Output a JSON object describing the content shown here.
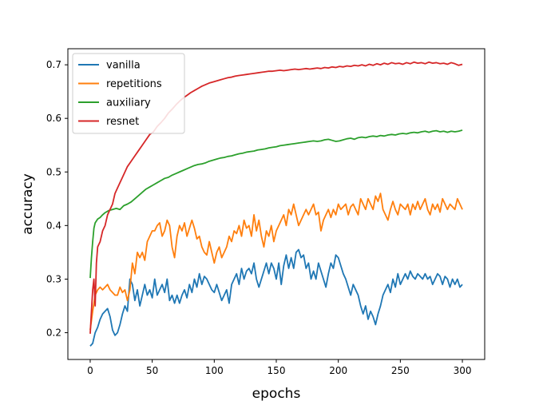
{
  "chart_data": {
    "type": "line",
    "xlabel": "epochs",
    "ylabel": "accuracy",
    "xlim": [
      -18,
      318
    ],
    "ylim": [
      0.15,
      0.73
    ],
    "xticks": [
      0,
      50,
      100,
      150,
      200,
      250,
      300
    ],
    "yticks": [
      0.2,
      0.3,
      0.4,
      0.5,
      0.6,
      0.7
    ],
    "legend_position": "top-left",
    "grid": false,
    "series": [
      {
        "name": "vanilla",
        "color": "#1f77b4",
        "x": [
          0,
          2,
          4,
          6,
          8,
          10,
          12,
          14,
          16,
          18,
          20,
          22,
          24,
          26,
          28,
          30,
          32,
          34,
          36,
          38,
          40,
          42,
          44,
          46,
          48,
          50,
          52,
          54,
          56,
          58,
          60,
          62,
          64,
          66,
          68,
          70,
          72,
          74,
          76,
          78,
          80,
          82,
          84,
          86,
          88,
          90,
          92,
          94,
          96,
          98,
          100,
          102,
          104,
          106,
          108,
          110,
          112,
          114,
          116,
          118,
          120,
          122,
          124,
          126,
          128,
          130,
          132,
          134,
          136,
          138,
          140,
          142,
          144,
          146,
          148,
          150,
          152,
          154,
          156,
          158,
          160,
          162,
          164,
          166,
          168,
          170,
          172,
          174,
          176,
          178,
          180,
          182,
          184,
          186,
          188,
          190,
          192,
          194,
          196,
          198,
          200,
          202,
          204,
          206,
          208,
          210,
          212,
          214,
          216,
          218,
          220,
          222,
          224,
          226,
          228,
          230,
          232,
          234,
          236,
          238,
          240,
          242,
          244,
          246,
          248,
          250,
          252,
          254,
          256,
          258,
          260,
          262,
          264,
          266,
          268,
          270,
          272,
          274,
          276,
          278,
          280,
          282,
          284,
          286,
          288,
          290,
          292,
          294,
          296,
          298,
          300
        ],
        "values": [
          0.175,
          0.18,
          0.2,
          0.21,
          0.225,
          0.235,
          0.24,
          0.245,
          0.23,
          0.205,
          0.195,
          0.2,
          0.215,
          0.235,
          0.25,
          0.24,
          0.3,
          0.29,
          0.26,
          0.28,
          0.25,
          0.27,
          0.29,
          0.27,
          0.28,
          0.265,
          0.3,
          0.27,
          0.28,
          0.29,
          0.275,
          0.3,
          0.26,
          0.27,
          0.255,
          0.27,
          0.255,
          0.27,
          0.28,
          0.265,
          0.29,
          0.275,
          0.3,
          0.285,
          0.31,
          0.29,
          0.305,
          0.3,
          0.29,
          0.28,
          0.275,
          0.29,
          0.275,
          0.26,
          0.27,
          0.28,
          0.255,
          0.29,
          0.3,
          0.31,
          0.29,
          0.32,
          0.3,
          0.315,
          0.32,
          0.31,
          0.33,
          0.3,
          0.285,
          0.3,
          0.315,
          0.33,
          0.31,
          0.33,
          0.32,
          0.3,
          0.33,
          0.29,
          0.325,
          0.345,
          0.32,
          0.34,
          0.32,
          0.35,
          0.355,
          0.34,
          0.345,
          0.32,
          0.33,
          0.3,
          0.315,
          0.3,
          0.33,
          0.315,
          0.3,
          0.285,
          0.31,
          0.33,
          0.32,
          0.345,
          0.34,
          0.325,
          0.31,
          0.3,
          0.285,
          0.27,
          0.29,
          0.28,
          0.27,
          0.25,
          0.235,
          0.25,
          0.225,
          0.24,
          0.23,
          0.215,
          0.235,
          0.25,
          0.27,
          0.28,
          0.29,
          0.275,
          0.3,
          0.285,
          0.31,
          0.29,
          0.3,
          0.31,
          0.3,
          0.315,
          0.305,
          0.3,
          0.31,
          0.305,
          0.3,
          0.31,
          0.3,
          0.305,
          0.29,
          0.3,
          0.31,
          0.305,
          0.29,
          0.305,
          0.3,
          0.285,
          0.3,
          0.29,
          0.3,
          0.285,
          0.29
        ]
      },
      {
        "name": "repetitions",
        "color": "#ff7f0e",
        "x": [
          0,
          2,
          4,
          6,
          8,
          10,
          12,
          14,
          16,
          18,
          20,
          22,
          24,
          26,
          28,
          30,
          32,
          34,
          36,
          38,
          40,
          42,
          44,
          46,
          48,
          50,
          52,
          54,
          56,
          58,
          60,
          62,
          64,
          66,
          68,
          70,
          72,
          74,
          76,
          78,
          80,
          82,
          84,
          86,
          88,
          90,
          92,
          94,
          96,
          98,
          100,
          102,
          104,
          106,
          108,
          110,
          112,
          114,
          116,
          118,
          120,
          122,
          124,
          126,
          128,
          130,
          132,
          134,
          136,
          138,
          140,
          142,
          144,
          146,
          148,
          150,
          152,
          154,
          156,
          158,
          160,
          162,
          164,
          166,
          168,
          170,
          172,
          174,
          176,
          178,
          180,
          182,
          184,
          186,
          188,
          190,
          192,
          194,
          196,
          198,
          200,
          202,
          204,
          206,
          208,
          210,
          212,
          214,
          216,
          218,
          220,
          222,
          224,
          226,
          228,
          230,
          232,
          234,
          236,
          238,
          240,
          242,
          244,
          246,
          248,
          250,
          252,
          254,
          256,
          258,
          260,
          262,
          264,
          266,
          268,
          270,
          272,
          274,
          276,
          278,
          280,
          282,
          284,
          286,
          288,
          290,
          292,
          294,
          296,
          298,
          300
        ],
        "values": [
          0.205,
          0.24,
          0.27,
          0.28,
          0.285,
          0.28,
          0.285,
          0.29,
          0.28,
          0.275,
          0.27,
          0.27,
          0.285,
          0.275,
          0.28,
          0.26,
          0.28,
          0.33,
          0.31,
          0.35,
          0.34,
          0.35,
          0.335,
          0.37,
          0.38,
          0.39,
          0.39,
          0.4,
          0.405,
          0.38,
          0.39,
          0.41,
          0.4,
          0.36,
          0.34,
          0.38,
          0.4,
          0.39,
          0.405,
          0.38,
          0.395,
          0.41,
          0.395,
          0.375,
          0.38,
          0.36,
          0.35,
          0.345,
          0.37,
          0.35,
          0.33,
          0.35,
          0.36,
          0.34,
          0.35,
          0.36,
          0.38,
          0.37,
          0.39,
          0.385,
          0.4,
          0.38,
          0.41,
          0.395,
          0.4,
          0.38,
          0.42,
          0.39,
          0.41,
          0.38,
          0.36,
          0.39,
          0.38,
          0.4,
          0.37,
          0.39,
          0.4,
          0.41,
          0.42,
          0.4,
          0.43,
          0.42,
          0.44,
          0.42,
          0.4,
          0.41,
          0.42,
          0.43,
          0.42,
          0.43,
          0.44,
          0.42,
          0.425,
          0.39,
          0.41,
          0.42,
          0.43,
          0.415,
          0.43,
          0.42,
          0.44,
          0.43,
          0.435,
          0.44,
          0.42,
          0.435,
          0.44,
          0.43,
          0.42,
          0.45,
          0.44,
          0.43,
          0.45,
          0.44,
          0.43,
          0.455,
          0.445,
          0.46,
          0.43,
          0.42,
          0.41,
          0.43,
          0.445,
          0.43,
          0.42,
          0.44,
          0.435,
          0.43,
          0.44,
          0.42,
          0.44,
          0.43,
          0.445,
          0.43,
          0.44,
          0.45,
          0.43,
          0.42,
          0.44,
          0.43,
          0.44,
          0.425,
          0.45,
          0.44,
          0.43,
          0.44,
          0.435,
          0.43,
          0.45,
          0.44,
          0.43
        ]
      },
      {
        "name": "auxiliary",
        "color": "#2ca02c",
        "x": [
          0,
          1,
          2,
          3,
          4,
          6,
          8,
          10,
          12,
          15,
          18,
          21,
          24,
          27,
          30,
          33,
          36,
          39,
          42,
          45,
          48,
          51,
          54,
          57,
          60,
          63,
          66,
          69,
          72,
          75,
          78,
          81,
          84,
          87,
          90,
          93,
          96,
          99,
          102,
          105,
          108,
          111,
          114,
          117,
          120,
          123,
          126,
          129,
          132,
          135,
          138,
          141,
          144,
          147,
          150,
          153,
          156,
          159,
          162,
          165,
          168,
          171,
          174,
          177,
          180,
          183,
          186,
          189,
          192,
          195,
          198,
          201,
          204,
          207,
          210,
          213,
          216,
          219,
          222,
          225,
          228,
          231,
          234,
          237,
          240,
          243,
          246,
          249,
          252,
          255,
          258,
          261,
          264,
          267,
          270,
          273,
          276,
          279,
          282,
          285,
          288,
          291,
          294,
          297,
          300
        ],
        "values": [
          0.302,
          0.34,
          0.37,
          0.395,
          0.405,
          0.412,
          0.415,
          0.42,
          0.424,
          0.428,
          0.43,
          0.432,
          0.43,
          0.437,
          0.44,
          0.444,
          0.45,
          0.456,
          0.462,
          0.468,
          0.472,
          0.476,
          0.48,
          0.484,
          0.488,
          0.49,
          0.494,
          0.497,
          0.5,
          0.503,
          0.506,
          0.509,
          0.512,
          0.514,
          0.515,
          0.517,
          0.52,
          0.522,
          0.524,
          0.526,
          0.527,
          0.529,
          0.53,
          0.532,
          0.534,
          0.535,
          0.537,
          0.538,
          0.539,
          0.541,
          0.542,
          0.543,
          0.545,
          0.546,
          0.547,
          0.549,
          0.55,
          0.551,
          0.552,
          0.553,
          0.554,
          0.555,
          0.556,
          0.557,
          0.558,
          0.557,
          0.558,
          0.56,
          0.561,
          0.559,
          0.557,
          0.558,
          0.56,
          0.562,
          0.563,
          0.561,
          0.564,
          0.565,
          0.564,
          0.566,
          0.567,
          0.566,
          0.568,
          0.567,
          0.569,
          0.57,
          0.569,
          0.571,
          0.572,
          0.571,
          0.573,
          0.574,
          0.573,
          0.575,
          0.576,
          0.574,
          0.576,
          0.577,
          0.575,
          0.576,
          0.574,
          0.576,
          0.575,
          0.576,
          0.578
        ]
      },
      {
        "name": "resnet",
        "color": "#d62728",
        "x": [
          0,
          1,
          2,
          3,
          4,
          5,
          6,
          8,
          10,
          12,
          14,
          16,
          18,
          20,
          22,
          24,
          26,
          28,
          30,
          33,
          36,
          39,
          42,
          45,
          48,
          51,
          54,
          57,
          60,
          63,
          66,
          69,
          72,
          75,
          78,
          81,
          84,
          87,
          90,
          93,
          96,
          99,
          102,
          105,
          108,
          111,
          114,
          117,
          120,
          123,
          126,
          129,
          132,
          135,
          138,
          141,
          144,
          147,
          150,
          153,
          156,
          159,
          162,
          165,
          168,
          171,
          174,
          177,
          180,
          183,
          186,
          189,
          192,
          195,
          198,
          201,
          204,
          207,
          210,
          213,
          216,
          219,
          222,
          225,
          228,
          231,
          234,
          237,
          240,
          243,
          246,
          249,
          252,
          255,
          258,
          261,
          264,
          267,
          270,
          273,
          276,
          279,
          282,
          285,
          288,
          291,
          294,
          297,
          300
        ],
        "values": [
          0.198,
          0.24,
          0.28,
          0.3,
          0.25,
          0.33,
          0.36,
          0.37,
          0.39,
          0.4,
          0.42,
          0.43,
          0.44,
          0.46,
          0.47,
          0.48,
          0.49,
          0.5,
          0.51,
          0.52,
          0.53,
          0.54,
          0.55,
          0.56,
          0.57,
          0.575,
          0.585,
          0.592,
          0.6,
          0.61,
          0.617,
          0.625,
          0.632,
          0.638,
          0.643,
          0.648,
          0.652,
          0.656,
          0.66,
          0.663,
          0.666,
          0.668,
          0.67,
          0.672,
          0.674,
          0.676,
          0.677,
          0.679,
          0.68,
          0.681,
          0.682,
          0.683,
          0.684,
          0.685,
          0.686,
          0.687,
          0.688,
          0.688,
          0.689,
          0.69,
          0.689,
          0.69,
          0.691,
          0.692,
          0.691,
          0.692,
          0.693,
          0.692,
          0.693,
          0.694,
          0.693,
          0.695,
          0.694,
          0.696,
          0.695,
          0.697,
          0.696,
          0.698,
          0.697,
          0.699,
          0.698,
          0.7,
          0.698,
          0.701,
          0.699,
          0.702,
          0.7,
          0.703,
          0.701,
          0.704,
          0.702,
          0.703,
          0.701,
          0.704,
          0.702,
          0.705,
          0.703,
          0.704,
          0.702,
          0.705,
          0.703,
          0.704,
          0.702,
          0.703,
          0.701,
          0.704,
          0.702,
          0.699,
          0.701
        ]
      }
    ]
  }
}
